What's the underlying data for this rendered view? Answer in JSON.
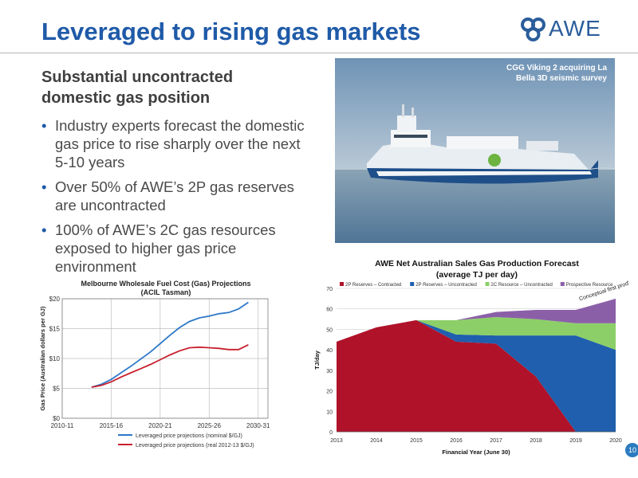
{
  "slide": {
    "title": "Leveraged to rising gas markets",
    "logo_text": "AWE",
    "subtitle": "Substantial uncontracted domestic gas position",
    "bullets": [
      "Industry experts forecast the domestic gas price to rise sharply over the next 5-10 years",
      "Over 50% of AWE’s 2P gas reserves are uncontracted",
      "100% of AWE’s 2C gas resources exposed to higher gas price environment"
    ],
    "bullet_glyph": "•",
    "photo_caption": "CGG Viking 2 acquiring La Bella 3D seismic survey",
    "page_number": "10"
  },
  "chart_data": [
    {
      "type": "line",
      "title": "Melbourne Wholesale Fuel Cost (Gas) Projections",
      "subtitle": "(ACIL Tasman)",
      "xlabel": "",
      "ylabel": "Gas Price (Australian dollars per GJ)",
      "x_categories": [
        "2010-11",
        "2011-12",
        "2012-13",
        "2013-14",
        "2014-15",
        "2015-16",
        "2016-17",
        "2017-18",
        "2018-19",
        "2019-20",
        "2020-21",
        "2021-22",
        "2022-23",
        "2023-24",
        "2024-25",
        "2025-26",
        "2026-27",
        "2027-28",
        "2028-29",
        "2029-30",
        "2030-31",
        "2031-32"
      ],
      "x_tick_labels": [
        "2010-11",
        "2015-16",
        "2020-21",
        "2025-26",
        "2030-31"
      ],
      "x_tick_indices": [
        0,
        5,
        10,
        15,
        20
      ],
      "y_ticks": [
        0,
        5,
        10,
        15,
        20
      ],
      "y_tick_labels": [
        "$0",
        "$5",
        "$10",
        "$15",
        "$20"
      ],
      "ylim": [
        0,
        20
      ],
      "grid": true,
      "legend_position": "bottom",
      "series": [
        {
          "name": "Leveraged price projections (nominal $/GJ)",
          "color": "#2e79c9",
          "start_index": 3,
          "values": [
            5.2,
            5.7,
            6.5,
            7.6,
            8.7,
            9.9,
            11.1,
            12.5,
            13.9,
            15.2,
            16.2,
            16.8,
            17.1,
            17.5,
            17.7,
            18.3,
            19.4
          ]
        },
        {
          "name": "Leveraged price projections (real 2012-13 $/GJ)",
          "color": "#c8202f",
          "start_index": 3,
          "values": [
            5.2,
            5.5,
            6.1,
            6.9,
            7.6,
            8.3,
            9.0,
            9.8,
            10.6,
            11.3,
            11.8,
            11.9,
            11.8,
            11.7,
            11.5,
            11.5,
            12.3
          ]
        }
      ]
    },
    {
      "type": "area",
      "stacked": true,
      "title": "AWE Net Australian Sales Gas Production Forecast",
      "subtitle": "(average TJ per day)",
      "xlabel": "Financial Year (June 30)",
      "ylabel": "TJ/day",
      "x": [
        2013,
        2014,
        2015,
        2016,
        2017,
        2018,
        2019,
        2020
      ],
      "ylim": [
        0,
        70
      ],
      "y_ticks": [
        0,
        10,
        20,
        30,
        40,
        50,
        60,
        70
      ],
      "legend_position": "top",
      "annotation": "Conceptual first prod'n",
      "series": [
        {
          "name": "2P Reserves – Contracted",
          "color": "#b0122a",
          "values": [
            44,
            51,
            54.5,
            44,
            43,
            27,
            0,
            0
          ]
        },
        {
          "name": "2P Reserves – Uncontracted",
          "color": "#1f5fae",
          "values": [
            0,
            0,
            0,
            3.5,
            4,
            20,
            47,
            40
          ]
        },
        {
          "name": "2C Resource – Uncontracted",
          "color": "#8ccf68",
          "values": [
            0,
            0,
            0,
            7,
            9,
            8,
            6,
            13
          ]
        },
        {
          "name": "Prospective Resource",
          "color": "#8b5fa8",
          "values": [
            0,
            0,
            0,
            0,
            2.5,
            4.5,
            6.5,
            12
          ]
        }
      ]
    }
  ]
}
